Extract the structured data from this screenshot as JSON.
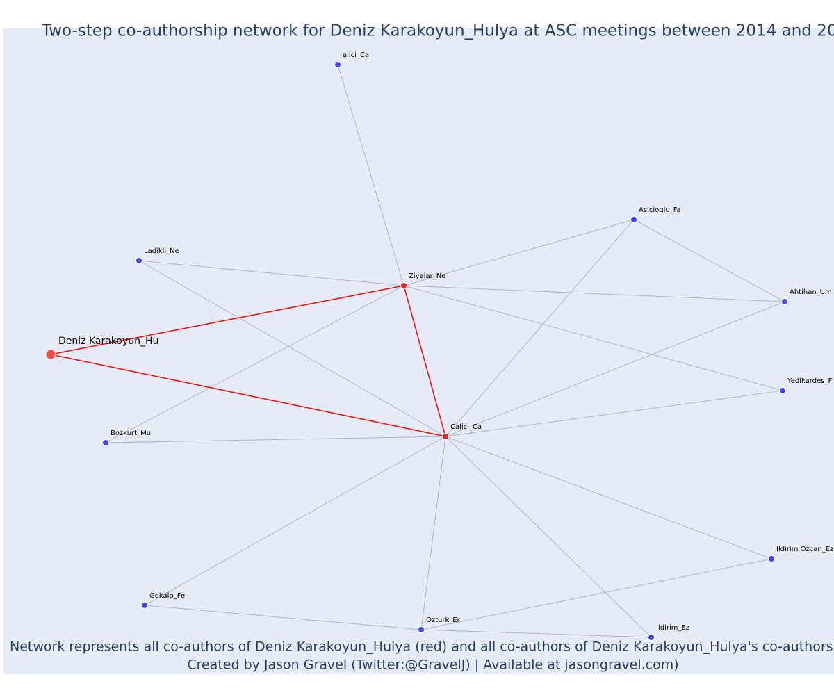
{
  "title": "Two-step co-authorship network for Deniz Karakoyun_Hulya at ASC meetings between 2014 and 20",
  "nodes": [
    {
      "label": "alici_Ca"
    },
    {
      "label": "Asicioglu_Fa"
    },
    {
      "label": "Ladikli_Ne"
    },
    {
      "label": "Ziyalar_Ne"
    },
    {
      "label": "Ahtihan_Um"
    },
    {
      "label": "Deniz Karakoyun_Hu"
    },
    {
      "label": "Yedikardes_F"
    },
    {
      "label": "Bozkurt_Mu"
    },
    {
      "label": "Calici_Ca"
    },
    {
      "label": "Ildirim Ozcan_Ez"
    },
    {
      "label": "Gokalp_Fe"
    },
    {
      "label": "Ozturk_Er"
    },
    {
      "label": "Ildirim_Ez"
    }
  ],
  "footer": {
    "line1": "Network represents all co-authors of Deniz Karakoyun_Hulya (red) and all co-authors of Deniz Karakoyun_Hulya's co-authors (bl",
    "line2": "Created by Jason Gravel (Twitter:@GravelJ) | Available at jasongravel.com)"
  }
}
